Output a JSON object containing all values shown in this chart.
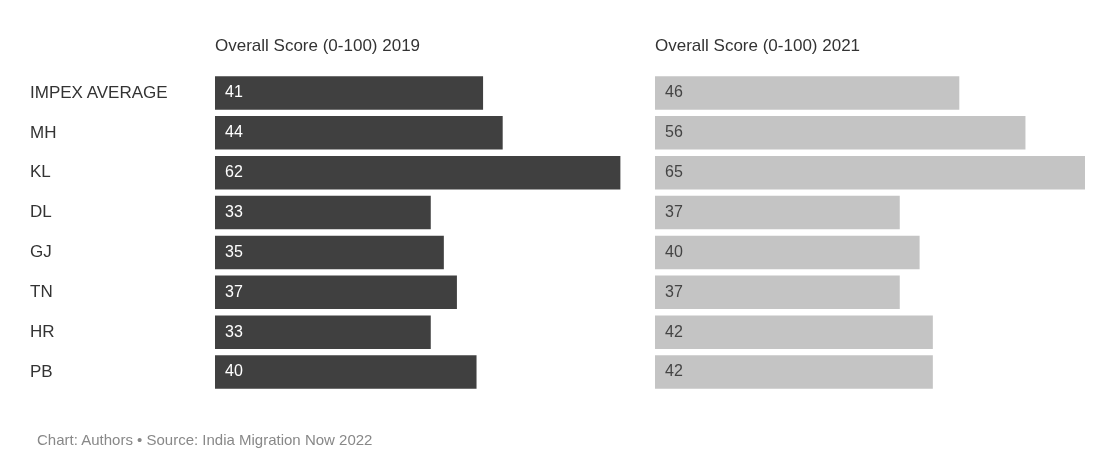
{
  "chart_data": [
    {
      "type": "bar",
      "orientation": "horizontal",
      "title": "Overall Score (0-100) 2019",
      "categories": [
        "IMPEX AVERAGE",
        "MH",
        "KL",
        "DL",
        "GJ",
        "TN",
        "HR",
        "PB"
      ],
      "values": [
        41,
        44,
        62,
        33,
        35,
        37,
        33,
        40
      ],
      "color": "#404040",
      "data_labels": true,
      "tick_labels": "y",
      "annotations": [
        "Chart: Authors • Source: India Migration Now 2022"
      ]
    },
    {
      "type": "bar",
      "orientation": "horizontal",
      "title": "Overall Score (0-100) 2021",
      "categories": [
        null,
        null,
        null,
        null,
        null,
        null,
        null,
        null
      ],
      "values": [
        46,
        56,
        65,
        37,
        40,
        37,
        42,
        42
      ],
      "color": "#c4c4c4",
      "data_labels": true,
      "tick_labels": false
    }
  ]
}
